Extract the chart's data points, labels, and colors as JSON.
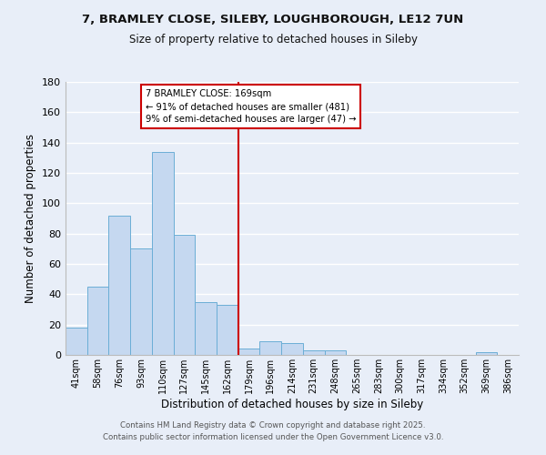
{
  "title": "7, BRAMLEY CLOSE, SILEBY, LOUGHBOROUGH, LE12 7UN",
  "subtitle": "Size of property relative to detached houses in Sileby",
  "xlabel": "Distribution of detached houses by size in Sileby",
  "ylabel": "Number of detached properties",
  "bar_labels": [
    "41sqm",
    "58sqm",
    "76sqm",
    "93sqm",
    "110sqm",
    "127sqm",
    "145sqm",
    "162sqm",
    "179sqm",
    "196sqm",
    "214sqm",
    "231sqm",
    "248sqm",
    "265sqm",
    "283sqm",
    "300sqm",
    "317sqm",
    "334sqm",
    "352sqm",
    "369sqm",
    "386sqm"
  ],
  "bar_values": [
    18,
    45,
    92,
    70,
    134,
    79,
    35,
    33,
    4,
    9,
    8,
    3,
    3,
    0,
    0,
    0,
    0,
    0,
    0,
    2,
    0
  ],
  "bar_color": "#c5d8f0",
  "bar_edge_color": "#6baed6",
  "annotation_line_color": "#cc0000",
  "annotation_box_text": "7 BRAMLEY CLOSE: 169sqm\n← 91% of detached houses are smaller (481)\n9% of semi-detached houses are larger (47) →",
  "ylim": [
    0,
    180
  ],
  "yticks": [
    0,
    20,
    40,
    60,
    80,
    100,
    120,
    140,
    160,
    180
  ],
  "background_color": "#e8eef8",
  "grid_color": "#ffffff",
  "footer_line1": "Contains HM Land Registry data © Crown copyright and database right 2025.",
  "footer_line2": "Contains public sector information licensed under the Open Government Licence v3.0."
}
